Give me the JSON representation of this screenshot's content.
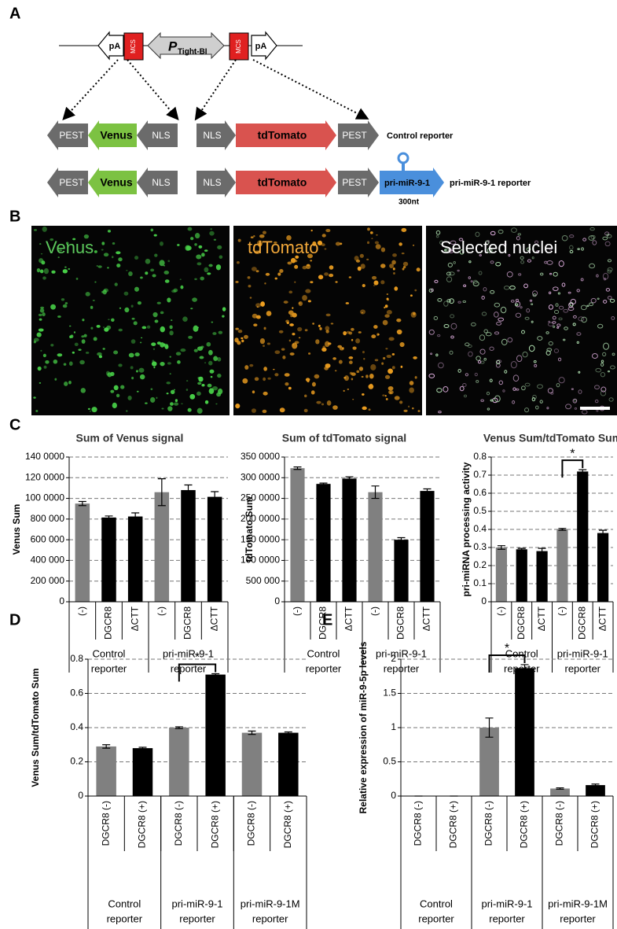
{
  "panel_labels": [
    "A",
    "B",
    "C",
    "D",
    "E"
  ],
  "panel_a": {
    "pA": "pA",
    "MCS": "MCS",
    "promoter": "P",
    "promoter_sub": "Tight-BI",
    "control": {
      "left": [
        "PEST",
        "Venus",
        "NLS"
      ],
      "right": [
        "NLS",
        "tdTomato",
        "PEST"
      ],
      "label": "Control reporter"
    },
    "pri": {
      "left": [
        "PEST",
        "Venus",
        "NLS"
      ],
      "right": [
        "NLS",
        "tdTomato",
        "PEST"
      ],
      "insert": "pri-miR-9-1",
      "label": "pri-miR-9-1 reporter",
      "size": "300nt"
    }
  },
  "panel_b": {
    "images": [
      "Venus",
      "tdTomato",
      "Selected nuclei"
    ]
  },
  "chart_data": [
    {
      "type": "bar",
      "title": "Sum of Venus signal",
      "ylabel": "Venus Sum",
      "categories": [
        "(-)",
        "DGCR8",
        "ΔCTT",
        "(-)",
        "DGCR8",
        "ΔCTT"
      ],
      "values": [
        950000,
        815000,
        825000,
        1060000,
        1080000,
        1015000
      ],
      "errors": [
        20000,
        15000,
        35000,
        130000,
        50000,
        50000
      ],
      "colors": [
        "#808080",
        "#000000",
        "#000000",
        "#808080",
        "#000000",
        "#000000"
      ],
      "group_labels": [
        [
          "Control",
          "reporter"
        ],
        [
          "pri-miR-9-1",
          "reporter"
        ]
      ],
      "ylim": [
        0,
        1400000
      ],
      "yticks": [
        0,
        {
          "value": 200000,
          "label": "200 000"
        },
        {
          "value": 400000,
          "label": "400 000"
        },
        {
          "value": 600000,
          "label": "600 000"
        },
        {
          "value": 800000,
          "label": "800 000"
        },
        {
          "value": 1000000,
          "label": "100 0000"
        },
        {
          "value": 1200000,
          "label": "120 0000"
        },
        {
          "value": 1400000,
          "label": "140 0000"
        }
      ],
      "grid": true
    },
    {
      "type": "bar",
      "title": "Sum of tdTomato signal",
      "ylabel": "tdTomato Sum",
      "categories": [
        "(-)",
        "DGCR8",
        "ΔCTT",
        "(-)",
        "DGCR8",
        "ΔCTT"
      ],
      "values": [
        3230000,
        2850000,
        2980000,
        2650000,
        1500000,
        2680000
      ],
      "errors": [
        30000,
        20000,
        40000,
        150000,
        50000,
        50000
      ],
      "colors": [
        "#808080",
        "#000000",
        "#000000",
        "#808080",
        "#000000",
        "#000000"
      ],
      "group_labels": [
        [
          "Control",
          "reporter"
        ],
        [
          "pri-miR-9-1",
          "reporter"
        ]
      ],
      "ylim": [
        0,
        3500000
      ],
      "yticks": [
        0,
        {
          "value": 500000,
          "label": "500 000"
        },
        {
          "value": 1000000,
          "label": "100 0000"
        },
        {
          "value": 1500000,
          "label": "150 0000"
        },
        {
          "value": 2000000,
          "label": "200 0000"
        },
        {
          "value": 2500000,
          "label": "250 0000"
        },
        {
          "value": 3000000,
          "label": "300 0000"
        },
        {
          "value": 3500000,
          "label": "350 0000"
        }
      ],
      "grid": true
    },
    {
      "type": "bar",
      "title": "Venus Sum/tdTomato Sum",
      "ylabel": "pri-miRNA processing activity",
      "categories": [
        "(-)",
        "DGCR8",
        "ΔCTT",
        "(-)",
        "DGCR8",
        "ΔCTT"
      ],
      "values": [
        0.3,
        0.29,
        0.28,
        0.4,
        0.72,
        0.38
      ],
      "errors": [
        0.01,
        0.005,
        0.015,
        0.005,
        0.01,
        0.015
      ],
      "colors": [
        "#808080",
        "#000000",
        "#000000",
        "#808080",
        "#000000",
        "#000000"
      ],
      "group_labels": [
        [
          "Control",
          "reporter"
        ],
        [
          "pri-miR-9-1",
          "reporter"
        ]
      ],
      "ylim": [
        0,
        0.8
      ],
      "yticks": [
        0,
        0.1,
        0.2,
        0.3,
        0.4,
        0.5,
        0.6,
        0.7,
        0.8
      ],
      "annotation": "*",
      "grid": true
    },
    {
      "type": "bar",
      "ylabel": "Venus Sum/tdTomato Sum",
      "categories": [
        "DGCR8 (-)",
        "DGCR8 (+)",
        "DGCR8 (-)",
        "DGCR8 (+)",
        "DGCR8 (-)",
        "DGCR8 (+)"
      ],
      "values": [
        0.29,
        0.28,
        0.4,
        0.71,
        0.37,
        0.37
      ],
      "errors": [
        0.01,
        0.005,
        0.005,
        0.005,
        0.01,
        0.005
      ],
      "colors": [
        "#808080",
        "#000000",
        "#808080",
        "#000000",
        "#808080",
        "#000000"
      ],
      "group_labels": [
        [
          "Control",
          "reporter"
        ],
        [
          "pri-miR-9-1",
          "reporter"
        ],
        [
          "pri-miR-9-1M",
          "reporter"
        ]
      ],
      "ylim": [
        0,
        0.8
      ],
      "yticks": [
        0,
        0.2,
        0.4,
        0.6,
        0.8
      ],
      "annotation": "*",
      "grid": true
    },
    {
      "type": "bar",
      "ylabel": "Relative expression of miR-9-5p levels",
      "categories": [
        "DGCR8 (-)",
        "DGCR8 (+)",
        "DGCR8 (-)",
        "DGCR8 (+)",
        "DGCR8 (-)",
        "DGCR8 (+)"
      ],
      "values": [
        0,
        0,
        1.0,
        1.87,
        0.11,
        0.16
      ],
      "errors": [
        0,
        0,
        0.14,
        0.05,
        0.01,
        0.015
      ],
      "colors": [
        "#808080",
        "#000000",
        "#808080",
        "#000000",
        "#808080",
        "#000000"
      ],
      "group_labels": [
        [
          "Control",
          "reporter"
        ],
        [
          "pri-miR-9-1",
          "reporter"
        ],
        [
          "pri-miR-9-1M",
          "reporter"
        ]
      ],
      "ylim": [
        0,
        2
      ],
      "yticks": [
        0,
        0.5,
        1,
        1.5,
        2
      ],
      "annotation": "*",
      "grid": true
    }
  ]
}
